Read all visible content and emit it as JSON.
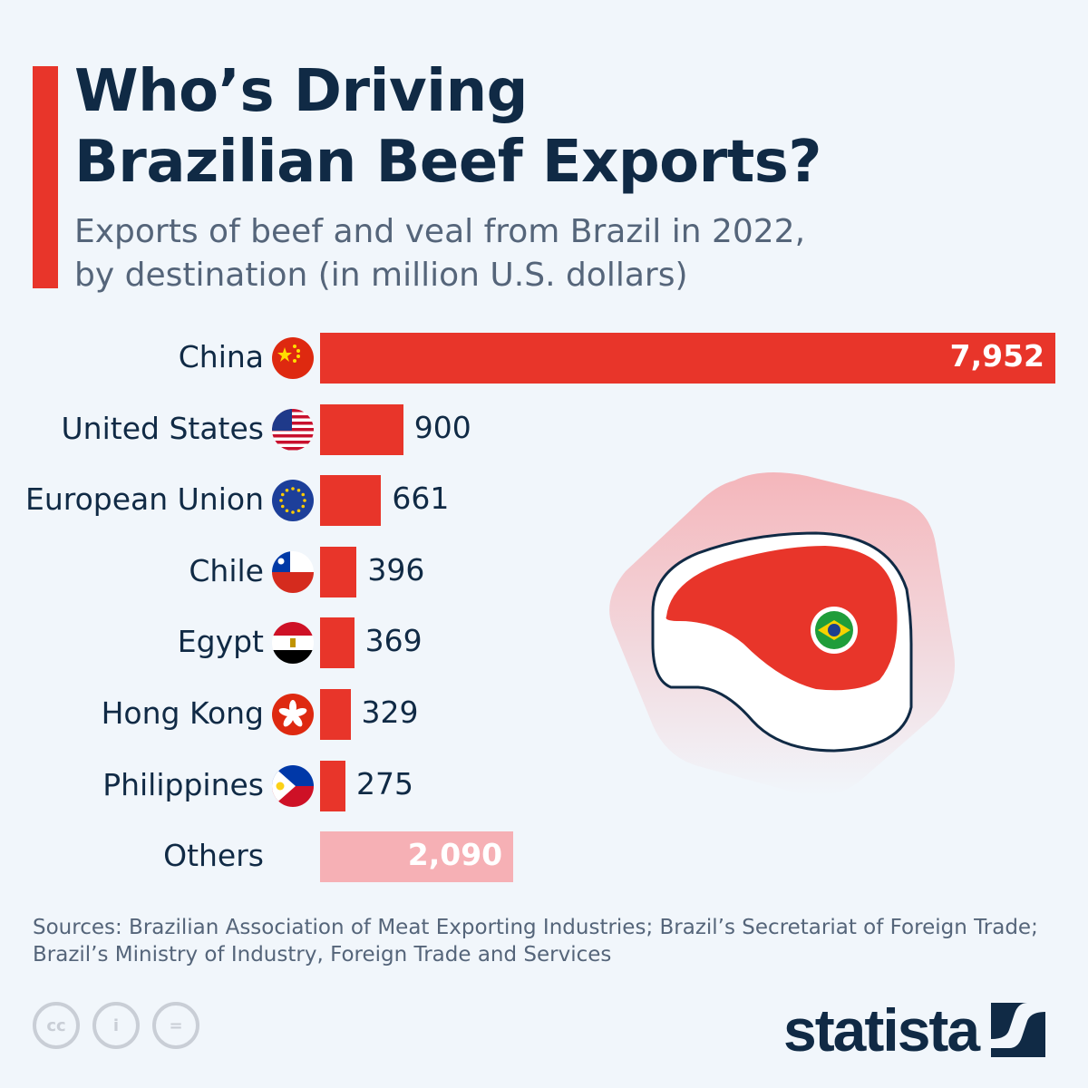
{
  "header": {
    "title_line1": "Who’s Driving",
    "title_line2": "Brazilian Beef Exports?",
    "subtitle_line1": "Exports of beef and veal from Brazil in 2022,",
    "subtitle_line2": "by destination (in million U.S. dollars)"
  },
  "chart_data": {
    "type": "bar",
    "orientation": "horizontal",
    "title": "Who’s Driving Brazilian Beef Exports?",
    "subtitle": "Exports of beef and veal from Brazil in 2022, by destination (in million U.S. dollars)",
    "categories": [
      "China",
      "United States",
      "European Union",
      "Chile",
      "Egypt",
      "Hong Kong",
      "Philippines",
      "Others"
    ],
    "values": [
      7952,
      900,
      661,
      396,
      369,
      329,
      275,
      2090
    ],
    "value_labels": [
      "7,952",
      "900",
      "661",
      "396",
      "369",
      "329",
      "275",
      "2,090"
    ],
    "flags": [
      "china-flag",
      "usa-flag",
      "eu-flag",
      "chile-flag",
      "egypt-flag",
      "hong-kong-flag",
      "philippines-flag",
      ""
    ],
    "colors": {
      "main": "#e8352a",
      "others": "#f6b0b5"
    },
    "grid": false,
    "xlim": [
      0,
      7952
    ]
  },
  "footer": {
    "sources_line1": "Sources: Brazilian Association of Meat Exporting Industries; Brazil’s Secretariat of Foreign Trade;",
    "sources_line2": "Brazil’s Ministry of Industry, Foreign Trade and Services",
    "cc_labels": [
      "cc",
      "i",
      "="
    ],
    "brand": "statista"
  }
}
